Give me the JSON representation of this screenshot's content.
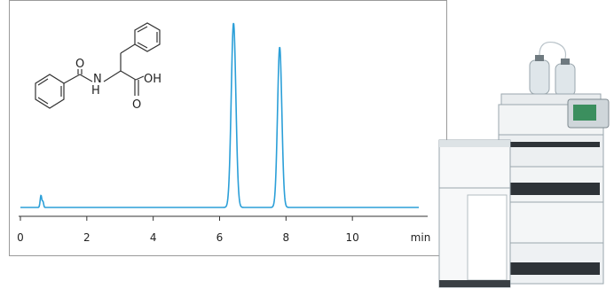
{
  "chart_data": {
    "type": "line",
    "title": "",
    "xlabel": "",
    "ylabel": "",
    "x_unit": "min",
    "xlim": [
      0,
      12
    ],
    "x_ticks": [
      0,
      2,
      4,
      6,
      8,
      10
    ],
    "ylim": [
      0,
      1.0
    ],
    "grid": false,
    "series": [
      {
        "color": "#2b9fd8",
        "peaks": [
          {
            "rt": 0.62,
            "height": 0.065,
            "width": 0.025
          },
          {
            "rt": 0.68,
            "height": 0.03,
            "width": 0.02
          },
          {
            "rt": 6.42,
            "height": 1.0,
            "width": 0.07
          },
          {
            "rt": 7.81,
            "height": 0.87,
            "width": 0.065
          }
        ]
      }
    ]
  },
  "structure": {
    "labels": {
      "o1": "O",
      "nh_n": "N",
      "nh_h": "H",
      "oh": "OH",
      "o2": "O"
    }
  },
  "instrument": {
    "icon": "hplc-system-icon"
  }
}
